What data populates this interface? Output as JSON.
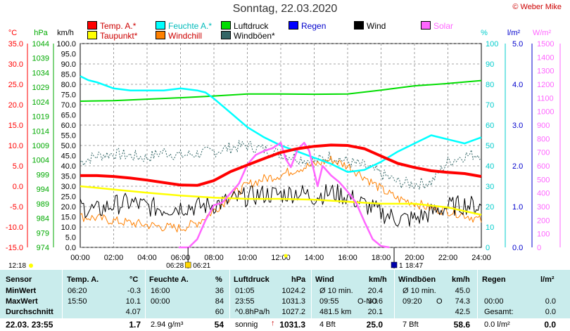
{
  "title": "Sonntag, 22.03.2020",
  "copyright": "© Weber Mike",
  "legend": [
    {
      "label": "Temp. A.*",
      "color": "#ff0000"
    },
    {
      "label": "Feuchte A.*",
      "color": "#00ffff"
    },
    {
      "label": "Luftdruck",
      "color": "#00dd00"
    },
    {
      "label": "Regen",
      "color": "#0000ff"
    },
    {
      "label": "Wind",
      "color": "#000000"
    },
    {
      "label": "Solar",
      "color": "#ff66ff"
    },
    {
      "label": "Taupunkt*",
      "color": "#ffff00"
    },
    {
      "label": "Windchill",
      "color": "#ff8000"
    },
    {
      "label": "Windböen*",
      "color": "#336666"
    }
  ],
  "axis_units": {
    "temp": "°C",
    "pressure": "hPa",
    "wind": "km/h",
    "humidity": "%",
    "rain": "l/m²",
    "solar": "W/m²"
  },
  "time_markers": {
    "sunrise": "06:28",
    "dawn": "06:21",
    "sunset": "18:47",
    "moon": "1",
    "now": "12:18"
  },
  "chart_data": {
    "type": "line",
    "x_ticks": [
      "00:00",
      "02:00",
      "04:00",
      "06:00",
      "08:00",
      "10:00",
      "12:00",
      "14:00",
      "16:00",
      "18:00",
      "20:00",
      "22:00",
      "24:00"
    ],
    "temp_ticks": [
      "35.0",
      "30.0",
      "25.0",
      "20.0",
      "15.0",
      "10.0",
      "5.0",
      "0.0",
      "-5.0",
      "-10.0",
      "-15.0"
    ],
    "pressure_ticks": [
      "1044",
      "1039",
      "1034",
      "1029",
      "1024",
      "1019",
      "1014",
      "1009",
      "1004",
      "999",
      "994",
      "989",
      "984",
      "979",
      "974"
    ],
    "wind_ticks": [
      "100.0",
      "95.0",
      "90.0",
      "85.0",
      "80.0",
      "75.0",
      "70.0",
      "65.0",
      "60.0",
      "55.0",
      "50.0",
      "45.0",
      "40.0",
      "35.0",
      "30.0",
      "25.0",
      "20.0",
      "15.0",
      "10.0",
      "5.0",
      "0.0"
    ],
    "humidity_ticks": [
      "100",
      "90",
      "80",
      "70",
      "60",
      "50",
      "40",
      "30",
      "20",
      "10",
      "0"
    ],
    "rain_ticks": [
      "5.0",
      "4.0",
      "3.0",
      "2.0",
      "1.0",
      "0.0"
    ],
    "solar_ticks": [
      "1500",
      "1400",
      "1300",
      "1200",
      "1100",
      "1000",
      "900",
      "800",
      "700",
      "600",
      "500",
      "400",
      "300",
      "200",
      "100",
      "0"
    ],
    "series": [
      {
        "name": "Temp. A.*",
        "axis": "temp",
        "color": "#ff0000",
        "width": 4,
        "x": [
          0,
          1,
          2,
          3,
          4,
          5,
          6,
          7,
          8,
          9,
          10,
          11,
          12,
          13,
          14,
          15,
          16,
          17,
          18,
          19,
          20,
          21,
          22,
          23,
          24
        ],
        "y": [
          2.6,
          2.6,
          2.4,
          2.0,
          1.5,
          0.9,
          0.3,
          0.2,
          1.4,
          3.6,
          5.2,
          6.8,
          8.3,
          9.2,
          9.8,
          10.1,
          10.0,
          9.2,
          7.4,
          5.6,
          4.6,
          3.8,
          3.4,
          3.1,
          2.4
        ]
      },
      {
        "name": "Feuchte A.*",
        "axis": "humidity",
        "color": "#00ffff",
        "width": 2.5,
        "x": [
          0,
          0.5,
          1,
          2,
          3,
          4,
          5,
          6,
          7,
          7.5,
          8,
          9,
          10,
          11,
          12,
          13,
          14,
          15,
          16,
          17,
          18,
          19,
          20,
          21,
          22,
          23,
          24
        ],
        "y": [
          84,
          82,
          81,
          78,
          77,
          77,
          77,
          78,
          77,
          76,
          73,
          66,
          59,
          54,
          50,
          47,
          44,
          41,
          37,
          38,
          42,
          47,
          51,
          55,
          53,
          51,
          54
        ]
      },
      {
        "name": "Luftdruck",
        "axis": "pressure",
        "color": "#00dd00",
        "width": 2,
        "x": [
          0,
          2,
          4,
          6,
          8,
          10,
          12,
          14,
          16,
          18,
          20,
          22,
          24
        ],
        "y": [
          1024.2,
          1024.4,
          1024.9,
          1025.4,
          1026.0,
          1026.7,
          1026.7,
          1026.6,
          1026.7,
          1028.0,
          1029.5,
          1030.3,
          1031.3
        ]
      },
      {
        "name": "Taupunkt*",
        "axis": "temp",
        "color": "#ffff00",
        "width": 2.5,
        "x": [
          0,
          2,
          4,
          6,
          8,
          10,
          12,
          14,
          16,
          18,
          20,
          22,
          24
        ],
        "y": [
          0.0,
          -0.8,
          -1.6,
          -2.3,
          -2.8,
          -3.1,
          -3.1,
          -3.3,
          -3.8,
          -4.3,
          -4.3,
          -5.2,
          -7.0
        ]
      },
      {
        "name": "Solar",
        "axis": "solar",
        "color": "#ff66ff",
        "width": 2.5,
        "x": [
          5.9,
          6.5,
          7,
          7.5,
          8,
          8.5,
          9,
          9.5,
          10,
          10.5,
          11,
          11.5,
          12,
          12.3,
          12.6,
          13,
          13.4,
          13.7,
          14.2,
          14.5,
          15,
          15.5,
          16,
          16.5,
          17,
          17.5,
          18,
          18.5
        ],
        "y": [
          0,
          0,
          60,
          200,
          310,
          330,
          400,
          470,
          610,
          680,
          710,
          730,
          770,
          650,
          590,
          720,
          770,
          710,
          450,
          600,
          530,
          480,
          410,
          330,
          190,
          60,
          10,
          0
        ]
      },
      {
        "name": "Wind",
        "axis": "wind",
        "color": "#000000",
        "width": 1,
        "noise": 5,
        "x": [
          0,
          1,
          2,
          3,
          4,
          5,
          6,
          7,
          8,
          9,
          10,
          11,
          12,
          13,
          14,
          15,
          16,
          17,
          18,
          19,
          20,
          21,
          22,
          23,
          24
        ],
        "y": [
          20,
          18,
          21,
          22,
          20,
          19,
          20,
          20,
          21,
          23,
          25,
          26,
          26,
          27,
          25,
          27,
          25,
          21,
          17,
          14,
          14,
          17,
          20,
          21,
          20
        ]
      },
      {
        "name": "Windchill",
        "axis": "temp",
        "color": "#ff8000",
        "width": 1,
        "noise": 1.2,
        "x": [
          0,
          1,
          2,
          3,
          4,
          5,
          6,
          7,
          8,
          9,
          10,
          11,
          12,
          13,
          14,
          15,
          16,
          17,
          18,
          19,
          20,
          21,
          22,
          23,
          24
        ],
        "y": [
          -7.5,
          -7.8,
          -8.5,
          -9.0,
          -9.5,
          -10.0,
          -10.3,
          -9.0,
          -6.0,
          -2.5,
          0.3,
          1.8,
          2.8,
          4.3,
          5.3,
          6.5,
          5.0,
          2.3,
          -0.7,
          -3.1,
          -4.0,
          -5.5,
          -6.0,
          -7.0,
          -8.4
        ]
      },
      {
        "name": "Windböen*",
        "axis": "wind",
        "color": "#336666",
        "width": 1,
        "dash": "2,2",
        "noise": 3,
        "x": [
          0,
          1,
          2,
          3,
          4,
          5,
          6,
          7,
          8,
          9,
          10,
          11,
          12,
          13,
          14,
          15,
          16,
          17,
          18,
          19,
          20,
          21,
          22,
          23,
          24
        ],
        "y": [
          42,
          45,
          46,
          45,
          44,
          47,
          45,
          46,
          47,
          49,
          50,
          48,
          46,
          44,
          42,
          45,
          42,
          40,
          36,
          32,
          31,
          32,
          42,
          45,
          46
        ]
      }
    ]
  },
  "table": {
    "headers": {
      "sensor": "Sensor",
      "temp": "Temp. A.",
      "temp_unit": "°C",
      "hum": "Feuchte A.",
      "hum_unit": "%",
      "press": "Luftdruck",
      "press_unit": "hPa",
      "wind": "Wind",
      "wind_unit": "km/h",
      "gust": "Windböen",
      "gust_unit": "km/h",
      "rain": "Regen",
      "rain_unit": "l/m²"
    },
    "rows": [
      {
        "label": "MinWert",
        "temp_t": "06:20",
        "temp_v": "-0.3",
        "hum_t": "16:00",
        "hum_v": "36",
        "press_t": "01:05",
        "press_v": "1024.2",
        "wind_t": "Ø 10 min.",
        "wind_v": "20.4",
        "gust_t": "Ø 10 min.",
        "gust_v": "45.0",
        "rain_t": "",
        "rain_v": ""
      },
      {
        "label": "MaxWert",
        "temp_t": "15:50",
        "temp_v": "10.1",
        "hum_t": "00:00",
        "hum_v": "84",
        "press_t": "23:55",
        "press_v": "1031.3",
        "wind_t": "09:55",
        "wind_m": "O-NO",
        "wind_v": "30.6",
        "gust_t": "09:20",
        "gust_m": "O",
        "gust_v": "74.3",
        "rain_t": "00:00",
        "rain_v": "0.0"
      },
      {
        "label": "Durchschnitt",
        "temp_t": "",
        "temp_v": "4.07",
        "hum_t": "",
        "hum_v": "60",
        "press_t": "^0.8hPa/h",
        "press_v": "1027.2",
        "wind_t": "481.5 km",
        "wind_v": "20.1",
        "gust_t": "",
        "gust_v": "42.5",
        "rain_t": "Gesamt:",
        "rain_v": "0.0"
      }
    ],
    "footer": {
      "label": "22.03. 23:55",
      "temp": "1.7",
      "hum_extra": "2.94 g/m³",
      "hum": "54",
      "press_trend": "sonnig",
      "press": "1031.3",
      "wind_bft": "4 Bft",
      "wind": "25.0",
      "gust_bft": "7 Bft",
      "gust": "58.6",
      "rain_extra": "0.0 l/m²",
      "rain": "0.0"
    }
  }
}
